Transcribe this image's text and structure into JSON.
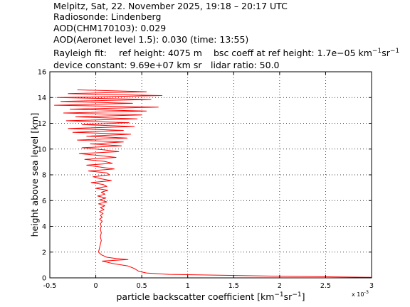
{
  "header": {
    "line1": "Melpitz, Sat, 22. November 2025, 19:18 – 20:17 UTC",
    "line2": "Radiosonde: Lindenberg",
    "line3": "AOD(CHM170103): 0.029",
    "line4": "AOD(Aeronet level 1.5): 0.030   (time: 13:55)",
    "rayleigh_fit": "Rayleigh fit:",
    "ref_height": "ref height: 4075 m",
    "bsc_coeff_prefix": "bsc coeff at ref height: 1.7e−05 km",
    "device_constant": "device constant: 9.69e+07 km sr",
    "lidar_ratio": "lidar ratio: 50.0"
  },
  "chart_data": {
    "type": "line",
    "xlabel": "particle backscatter coefficient [km",
    "ylabel": "height above sea level [km]",
    "x_multiplier": "x 10",
    "x_multiplier_exp": "-3",
    "unit_exp_a": "−1",
    "unit_sep": "sr",
    "unit_exp_b": "−1",
    "unit_close": "]",
    "xlim": [
      -0.5,
      3
    ],
    "ylim": [
      0,
      16
    ],
    "xticks": [
      -0.5,
      0,
      0.5,
      1,
      1.5,
      2,
      2.5,
      3
    ],
    "xtick_labels": [
      "-0.5",
      "0",
      "0.5",
      "1",
      "1.5",
      "2",
      "2.5",
      "3"
    ],
    "yticks": [
      0,
      2,
      4,
      6,
      8,
      10,
      12,
      14,
      16
    ],
    "ytick_labels": [
      "0",
      "2",
      "4",
      "6",
      "8",
      "10",
      "12",
      "14",
      "16"
    ],
    "grid": true,
    "color": "#ff0000",
    "series": [
      {
        "x": [
          3.0,
          2.05,
          1.4,
          0.8,
          0.68,
          0.55,
          0.47,
          0.42,
          0.35,
          0.24,
          0.18,
          0.12,
          0.07,
          0.35,
          0.22,
          0.12,
          0.06,
          0.03,
          0.04,
          0.05,
          0.06,
          0.05,
          0.06,
          0.05,
          0.06,
          0.05,
          0.07,
          0.04,
          0.07,
          0.05,
          0.08,
          0.04,
          0.09,
          0.05,
          0.1,
          0.03,
          0.12,
          0.04,
          0.11,
          0.02,
          0.1,
          0.06,
          0.13,
          0.0,
          0.12,
          0.08,
          -0.05,
          0.17,
          0.05,
          -0.03,
          0.15,
          0.12,
          -0.08,
          0.2,
          0.05,
          -0.1,
          0.18,
          0.09,
          -0.12,
          0.22,
          0.03,
          -0.18,
          0.25,
          0.08,
          -0.15,
          0.28,
          -0.06,
          0.3,
          -0.2,
          0.34,
          -0.1,
          0.38,
          -0.25,
          0.3,
          -0.3,
          0.42,
          -0.15,
          0.36,
          -0.32,
          0.45,
          -0.22,
          0.5,
          -0.35,
          0.55,
          -0.28,
          0.68,
          -0.45,
          0.4,
          -0.38,
          0.6,
          -0.42,
          0.72,
          -0.3,
          0.55,
          -0.2
        ],
        "y": [
          0.04,
          0.12,
          0.2,
          0.27,
          0.32,
          0.38,
          0.5,
          0.72,
          0.92,
          1.05,
          1.12,
          1.22,
          1.3,
          1.42,
          1.5,
          1.6,
          1.8,
          2.0,
          2.3,
          2.6,
          2.9,
          3.2,
          3.5,
          3.8,
          4.0,
          4.2,
          4.4,
          4.55,
          4.7,
          4.85,
          5.0,
          5.15,
          5.3,
          5.45,
          5.6,
          5.75,
          5.9,
          6.05,
          6.2,
          6.35,
          6.5,
          6.65,
          6.8,
          6.95,
          7.1,
          7.25,
          7.4,
          7.55,
          7.7,
          7.85,
          8.0,
          8.15,
          8.3,
          8.45,
          8.6,
          8.75,
          8.9,
          9.05,
          9.2,
          9.35,
          9.5,
          9.65,
          9.8,
          9.95,
          10.1,
          10.25,
          10.4,
          10.55,
          10.7,
          10.85,
          11.0,
          11.15,
          11.3,
          11.45,
          11.6,
          11.75,
          11.9,
          12.05,
          12.2,
          12.35,
          12.5,
          12.65,
          12.8,
          12.95,
          13.1,
          13.25,
          13.4,
          13.55,
          13.7,
          13.85,
          14.0,
          14.15,
          14.3,
          14.45,
          14.6
        ]
      }
    ]
  }
}
